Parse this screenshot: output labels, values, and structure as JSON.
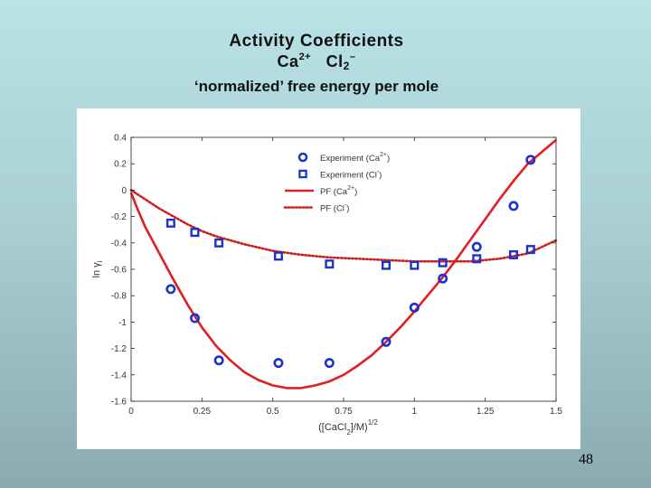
{
  "slide": {
    "title_line1": "Activity Coefficients",
    "title_ion1": "Ca",
    "title_ion1_charge": "2+",
    "title_ion2": "Cl",
    "title_ion2_sub": "2",
    "title_ion2_charge": "–",
    "subtitle": "‘normalized’ free energy per mole",
    "page_number": "48"
  },
  "colors": {
    "red": "#e02020",
    "blue": "#1a33cc",
    "dotted_red": "#cc1e1e"
  },
  "chart_data": {
    "type": "scatter",
    "xlabel": "([CaCl",
    "xlabel_sub": "2",
    "xlabel_end": "]/M)",
    "xlabel_sup": "1/2",
    "ylabel": "ln γ",
    "ylabel_sub": "i",
    "xlim": [
      0,
      1.5
    ],
    "ylim": [
      -1.6,
      0.4
    ],
    "xticks": [
      {
        "v": 0,
        "label": "0"
      },
      {
        "v": 0.25,
        "label": "0.25"
      },
      {
        "v": 0.5,
        "label": "0.5"
      },
      {
        "v": 0.75,
        "label": "0.75"
      },
      {
        "v": 1,
        "label": "1"
      },
      {
        "v": 1.25,
        "label": "1.25"
      },
      {
        "v": 1.5,
        "label": "1.5"
      }
    ],
    "yticks": [
      {
        "v": 0.4,
        "label": "0.4"
      },
      {
        "v": 0.2,
        "label": "0.2"
      },
      {
        "v": 0,
        "label": "0"
      },
      {
        "v": -0.2,
        "label": "-0.2"
      },
      {
        "v": -0.4,
        "label": "-0.4"
      },
      {
        "v": -0.6,
        "label": "-0.6"
      },
      {
        "v": -0.8,
        "label": "-0.8"
      },
      {
        "v": -1,
        "label": "-1"
      },
      {
        "v": -1.2,
        "label": "-1.2"
      },
      {
        "v": -1.4,
        "label": "-1.4"
      },
      {
        "v": -1.6,
        "label": "-1.6"
      }
    ],
    "legend_position": "top-right",
    "grid": false,
    "series": [
      {
        "name": "Experiment (Ca",
        "name_sup": "2+",
        "name_end": ")",
        "kind": "points",
        "marker": "circle",
        "color": "#1a33cc",
        "points": [
          [
            0.14,
            -0.75
          ],
          [
            0.225,
            -0.97
          ],
          [
            0.31,
            -1.29
          ],
          [
            0.52,
            -1.31
          ],
          [
            0.7,
            -1.31
          ],
          [
            0.9,
            -1.15
          ],
          [
            1.0,
            -0.89
          ],
          [
            1.1,
            -0.67
          ],
          [
            1.22,
            -0.43
          ],
          [
            1.35,
            -0.12
          ],
          [
            1.41,
            0.23
          ]
        ]
      },
      {
        "name": "Experiment (Cl",
        "name_sup": "-",
        "name_end": ")",
        "kind": "points",
        "marker": "square",
        "color": "#1a33cc",
        "points": [
          [
            0.14,
            -0.25
          ],
          [
            0.225,
            -0.32
          ],
          [
            0.31,
            -0.4
          ],
          [
            0.52,
            -0.5
          ],
          [
            0.7,
            -0.56
          ],
          [
            0.9,
            -0.57
          ],
          [
            1.0,
            -0.57
          ],
          [
            1.1,
            -0.55
          ],
          [
            1.22,
            -0.52
          ],
          [
            1.35,
            -0.49
          ],
          [
            1.41,
            -0.45
          ]
        ]
      },
      {
        "name": "PF (Ca",
        "name_sup": "2+",
        "name_end": ")",
        "kind": "line",
        "dash": "solid",
        "color": "#e02020",
        "points": [
          [
            0,
            -0.02
          ],
          [
            0.02,
            -0.13
          ],
          [
            0.05,
            -0.28
          ],
          [
            0.1,
            -0.48
          ],
          [
            0.15,
            -0.68
          ],
          [
            0.2,
            -0.87
          ],
          [
            0.25,
            -1.04
          ],
          [
            0.3,
            -1.18
          ],
          [
            0.35,
            -1.29
          ],
          [
            0.4,
            -1.38
          ],
          [
            0.45,
            -1.44
          ],
          [
            0.5,
            -1.48
          ],
          [
            0.55,
            -1.5
          ],
          [
            0.6,
            -1.5
          ],
          [
            0.65,
            -1.48
          ],
          [
            0.7,
            -1.45
          ],
          [
            0.75,
            -1.4
          ],
          [
            0.8,
            -1.33
          ],
          [
            0.85,
            -1.25
          ],
          [
            0.9,
            -1.15
          ],
          [
            0.95,
            -1.04
          ],
          [
            1.0,
            -0.92
          ],
          [
            1.05,
            -0.79
          ],
          [
            1.1,
            -0.66
          ],
          [
            1.15,
            -0.52
          ],
          [
            1.2,
            -0.37
          ],
          [
            1.25,
            -0.22
          ],
          [
            1.3,
            -0.07
          ],
          [
            1.35,
            0.07
          ],
          [
            1.4,
            0.2
          ],
          [
            1.45,
            0.29
          ],
          [
            1.5,
            0.38
          ]
        ]
      },
      {
        "name": "PF (Cl",
        "name_sup": "-",
        "name_end": ")",
        "kind": "line",
        "dash": "dotted",
        "color": "#cc1e1e",
        "points": [
          [
            0,
            0.0
          ],
          [
            0.05,
            -0.07
          ],
          [
            0.1,
            -0.14
          ],
          [
            0.15,
            -0.2
          ],
          [
            0.2,
            -0.26
          ],
          [
            0.25,
            -0.31
          ],
          [
            0.3,
            -0.35
          ],
          [
            0.4,
            -0.41
          ],
          [
            0.5,
            -0.46
          ],
          [
            0.6,
            -0.49
          ],
          [
            0.7,
            -0.51
          ],
          [
            0.8,
            -0.52
          ],
          [
            0.9,
            -0.53
          ],
          [
            1.0,
            -0.54
          ],
          [
            1.1,
            -0.54
          ],
          [
            1.2,
            -0.54
          ],
          [
            1.3,
            -0.52
          ],
          [
            1.4,
            -0.48
          ],
          [
            1.5,
            -0.38
          ]
        ]
      }
    ]
  }
}
